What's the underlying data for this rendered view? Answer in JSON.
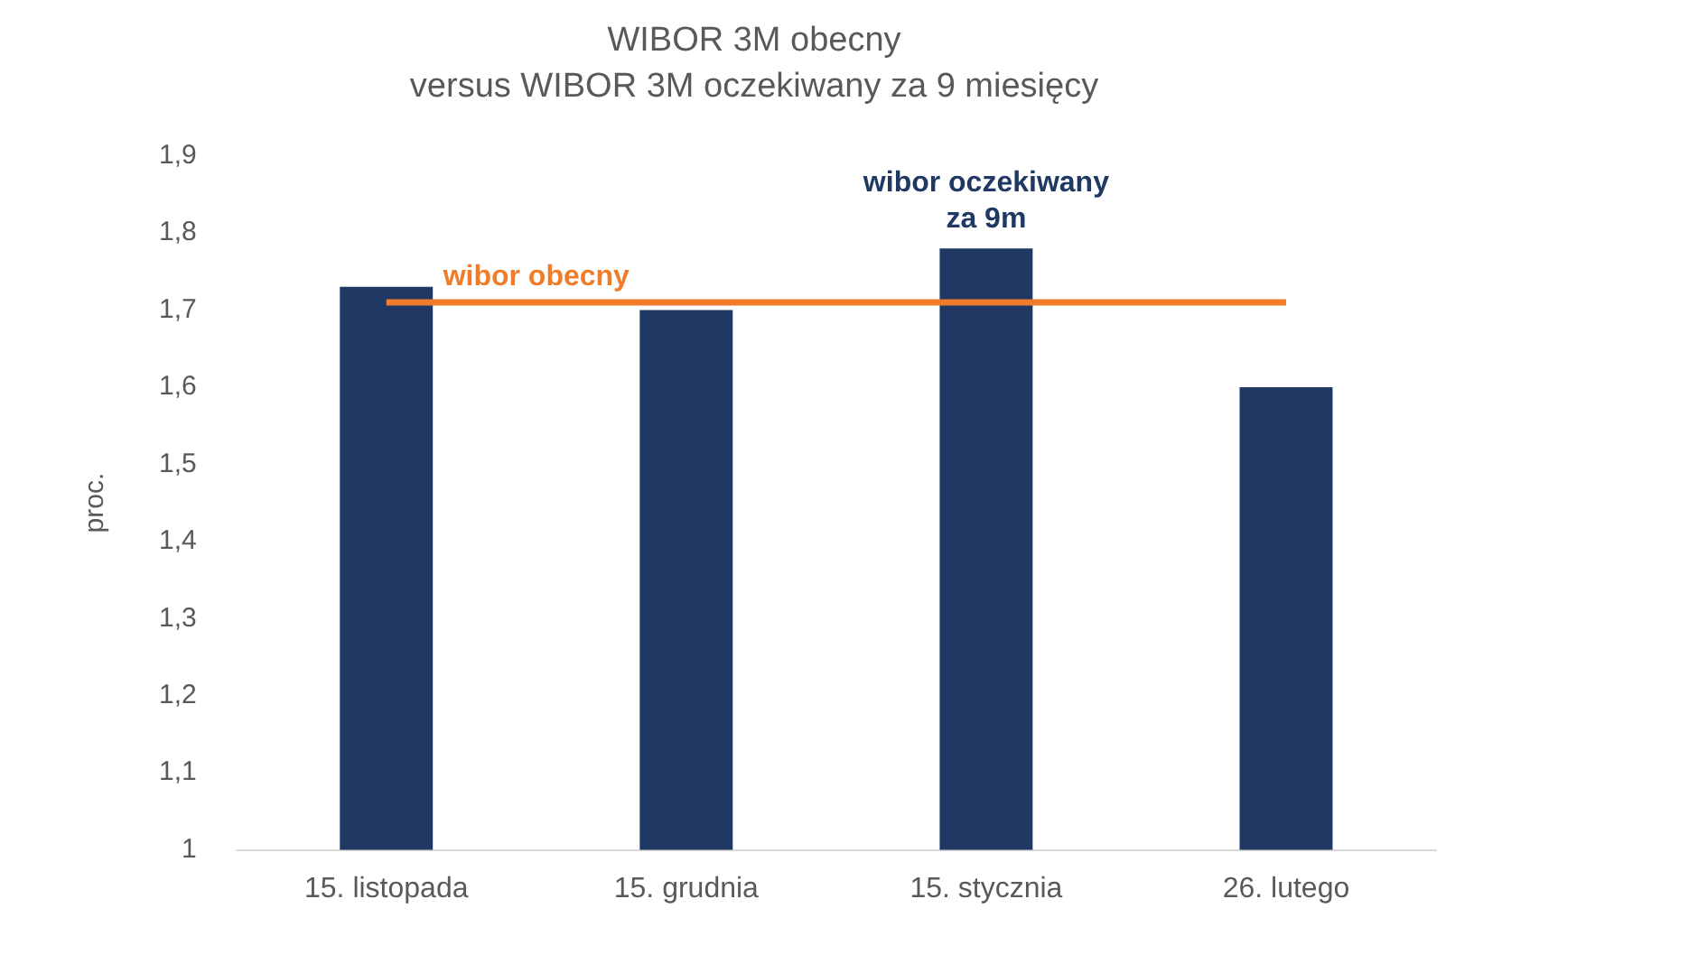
{
  "chart_data": {
    "type": "bar",
    "title": "WIBOR 3M obecny\nversus WIBOR 3M oczekiwany za 9 miesięcy",
    "ylabel": "proc.",
    "categories": [
      "15. listopada",
      "15. grudnia",
      "15. stycznia",
      "26. lutego"
    ],
    "series": [
      {
        "name": "wibor oczekiwany za 9m",
        "color": "#1f3864",
        "values": [
          1.73,
          1.7,
          1.78,
          1.6
        ]
      },
      {
        "name": "wibor obecny",
        "type": "line",
        "color": "#f07c2a",
        "values": [
          1.71,
          1.71,
          1.71,
          1.71
        ]
      }
    ],
    "ylim": [
      1,
      1.9
    ],
    "yticks": [
      1,
      {
        "value": 1.1,
        "label": "1,1"
      },
      {
        "value": 1.2,
        "label": "1,2"
      },
      {
        "value": 1.3,
        "label": "1,3"
      },
      {
        "value": 1.4,
        "label": "1,4"
      },
      {
        "value": 1.5,
        "label": "1,5"
      },
      {
        "value": 1.6,
        "label": "1,6"
      },
      {
        "value": 1.7,
        "label": "1,7"
      },
      {
        "value": 1.8,
        "label": "1,8"
      },
      {
        "value": 1.9,
        "label": "1,9"
      }
    ],
    "grid": false,
    "legend": false,
    "marker": "none",
    "line_style": "solid"
  }
}
